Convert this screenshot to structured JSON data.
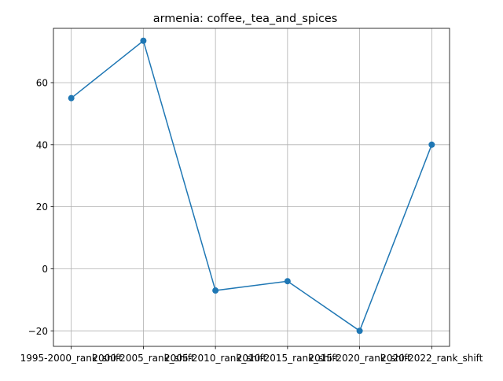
{
  "chart_data": {
    "type": "line",
    "title": "armenia: coffee,_tea_and_spices",
    "xlabel": "",
    "ylabel": "",
    "categories": [
      "1995-2000_rank_shift",
      "2000-2005_rank_shift",
      "2005-2010_rank_shift",
      "2010-2015_rank_shift",
      "2015-2020_rank_shift",
      "2020-2022_rank_shift"
    ],
    "series": [
      {
        "values": [
          55,
          73.5,
          -7,
          -4,
          -20,
          40
        ]
      }
    ],
    "ylim": [
      -25,
      77.5
    ],
    "yticks": [
      -20,
      0,
      20,
      40,
      60
    ],
    "ytick_labels": [
      "−20",
      "0",
      "20",
      "40",
      "60"
    ],
    "grid": true,
    "markers": true,
    "line_color": "#1f77b4"
  }
}
